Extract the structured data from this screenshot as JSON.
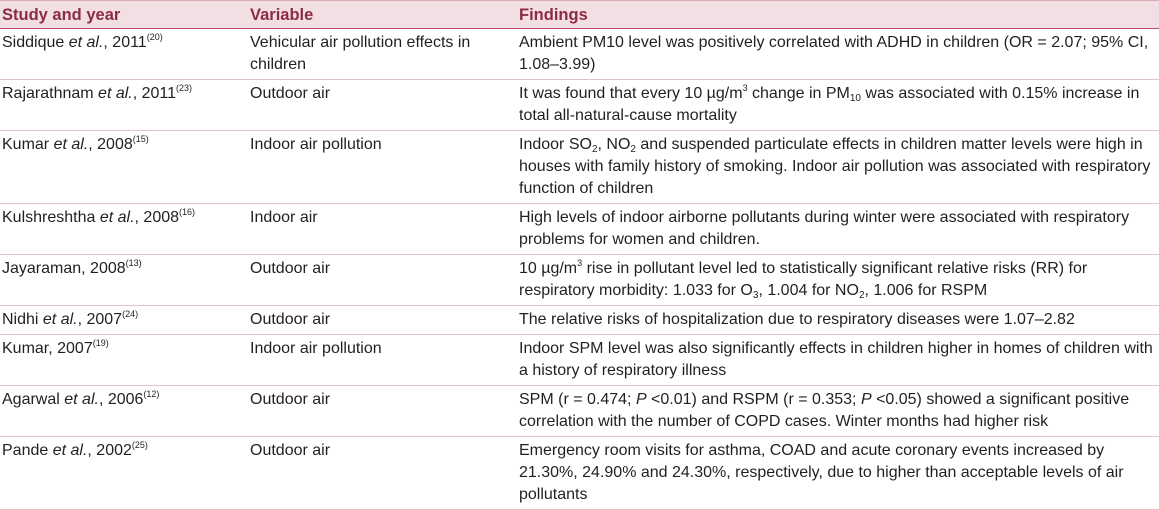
{
  "headers": [
    "Study and year",
    "Variable",
    "Findings"
  ],
  "rows": [
    {
      "study": [
        {
          "t": "Siddique "
        },
        {
          "t": "et al.",
          "i": true
        },
        {
          "t": ", 2011"
        },
        {
          "t": "(20)",
          "sup": true
        }
      ],
      "variable": "Vehicular air pollution effects in children",
      "findings": [
        {
          "t": "Ambient PM10 level was positively correlated with ADHD in children (OR = 2.07; 95% CI, 1.08–3.99)"
        }
      ]
    },
    {
      "study": [
        {
          "t": "Rajarathnam "
        },
        {
          "t": "et al.",
          "i": true
        },
        {
          "t": ", 2011"
        },
        {
          "t": "(23)",
          "sup": true
        }
      ],
      "variable": "Outdoor air",
      "findings": [
        {
          "t": "It was found that every 10 µg/m"
        },
        {
          "t": "3",
          "sup": true
        },
        {
          "t": " change in PM"
        },
        {
          "t": "10",
          "sub": true
        },
        {
          "t": " was associated with 0.15% increase in total all-natural-cause mortality"
        }
      ]
    },
    {
      "study": [
        {
          "t": "Kumar "
        },
        {
          "t": "et al.",
          "i": true
        },
        {
          "t": ", 2008"
        },
        {
          "t": "(15)",
          "sup": true
        }
      ],
      "variable": "Indoor air pollution",
      "findings": [
        {
          "t": "Indoor SO"
        },
        {
          "t": "2",
          "sub": true
        },
        {
          "t": ", NO"
        },
        {
          "t": "2",
          "sub": true
        },
        {
          "t": " and suspended particulate effects in children matter levels were high in houses with family history of smoking. Indoor air pollution was associated with respiratory function of children"
        }
      ]
    },
    {
      "study": [
        {
          "t": "Kulshreshtha "
        },
        {
          "t": "et al.",
          "i": true
        },
        {
          "t": ", 2008"
        },
        {
          "t": "(16)",
          "sup": true
        }
      ],
      "variable": "Indoor air",
      "findings": [
        {
          "t": "High levels of indoor airborne pollutants during winter were associated with respiratory problems for women and children."
        }
      ]
    },
    {
      "study": [
        {
          "t": "Jayaraman, 2008"
        },
        {
          "t": "(13)",
          "sup": true
        }
      ],
      "variable": "Outdoor air",
      "findings": [
        {
          "t": "10 µg/m"
        },
        {
          "t": "3",
          "sup": true
        },
        {
          "t": " rise in pollutant level led to statistically significant relative risks (RR) for respiratory morbidity: 1.033 for O"
        },
        {
          "t": "3",
          "sub": true
        },
        {
          "t": ", 1.004 for NO"
        },
        {
          "t": "2",
          "sub": true
        },
        {
          "t": ", 1.006 for RSPM"
        }
      ]
    },
    {
      "study": [
        {
          "t": "Nidhi "
        },
        {
          "t": "et al.",
          "i": true
        },
        {
          "t": ", 2007"
        },
        {
          "t": "(24)",
          "sup": true
        }
      ],
      "variable": "Outdoor air",
      "findings": [
        {
          "t": "The relative risks of hospitalization due to respiratory diseases were 1.07–2.82"
        }
      ]
    },
    {
      "study": [
        {
          "t": "Kumar, 2007"
        },
        {
          "t": "(19)",
          "sup": true
        }
      ],
      "variable": "Indoor air pollution",
      "findings": [
        {
          "t": "Indoor SPM level was also significantly effects in children higher in homes of children with a history of respiratory illness"
        }
      ]
    },
    {
      "study": [
        {
          "t": "Agarwal "
        },
        {
          "t": "et al.",
          "i": true
        },
        {
          "t": ", 2006"
        },
        {
          "t": "(12)",
          "sup": true
        }
      ],
      "variable": "Outdoor air",
      "findings": [
        {
          "t": "SPM (r = 0.474; "
        },
        {
          "t": "P",
          "i": true
        },
        {
          "t": " <0.01) and RSPM (r = 0.353; "
        },
        {
          "t": "P",
          "i": true
        },
        {
          "t": " <0.05) showed a significant positive correlation with the number of COPD cases. Winter months had higher risk"
        }
      ]
    },
    {
      "study": [
        {
          "t": "Pande "
        },
        {
          "t": "et al.",
          "i": true
        },
        {
          "t": ", 2002"
        },
        {
          "t": "(25)",
          "sup": true
        }
      ],
      "variable": "Outdoor air",
      "findings": [
        {
          "t": "Emergency room visits for asthma, COAD and acute coronary events increased by 21.30%, 24.90% and 24.30%, respectively, due to higher than acceptable levels of air pollutants"
        }
      ]
    }
  ],
  "colors": {
    "header_bg": "#f2dfe3",
    "header_text": "#8c2b45",
    "rule": "#e3c3ca"
  }
}
